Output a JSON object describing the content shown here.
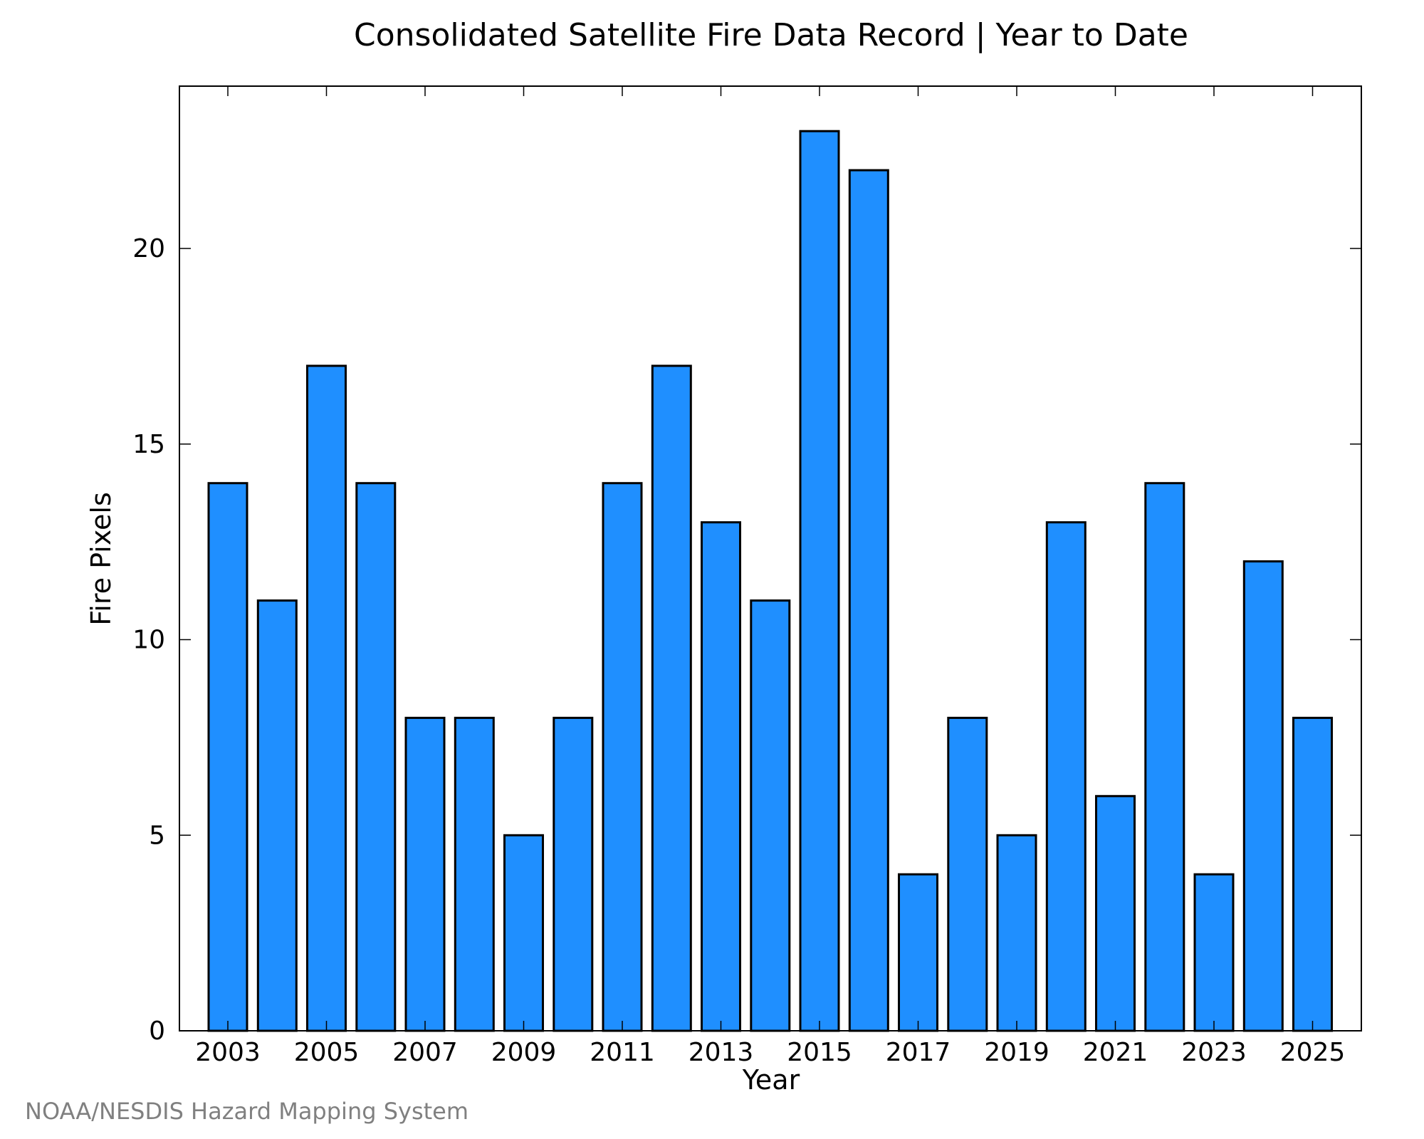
{
  "chart_data": {
    "type": "bar",
    "title": "Consolidated Satellite Fire Data Record | Year to Date",
    "xlabel": "Year",
    "ylabel": "Fire Pixels",
    "categories": [
      "2003",
      "2004",
      "2005",
      "2006",
      "2007",
      "2008",
      "2009",
      "2010",
      "2011",
      "2012",
      "2013",
      "2014",
      "2015",
      "2016",
      "2017",
      "2018",
      "2019",
      "2020",
      "2021",
      "2022",
      "2023",
      "2024",
      "2025"
    ],
    "values": [
      14,
      11,
      17,
      14,
      8,
      8,
      5,
      8,
      14,
      17,
      13,
      11,
      23,
      22,
      4,
      8,
      5,
      13,
      6,
      14,
      4,
      12,
      8
    ],
    "x_tick_labels": [
      "2003",
      "2005",
      "2007",
      "2009",
      "2011",
      "2013",
      "2015",
      "2017",
      "2019",
      "2021",
      "2023",
      "2025"
    ],
    "y_ticks": [
      "0",
      "5",
      "10",
      "15",
      "20"
    ],
    "ylim": [
      0,
      24.15
    ],
    "bar_color": "#1f8fff",
    "grid": false,
    "legend": "none"
  },
  "source_note": "NOAA/NESDIS Hazard Mapping System"
}
